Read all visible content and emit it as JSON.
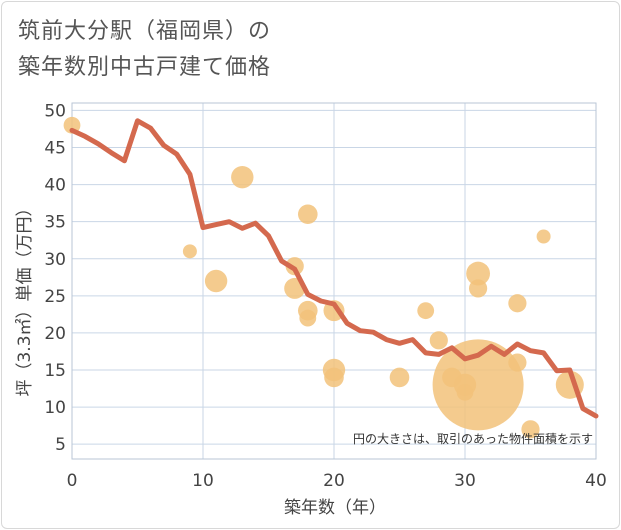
{
  "title_lines": [
    "筑前大分駅（福岡県）の",
    "築年数別中古戸建て価格"
  ],
  "chart_data": {
    "type": "scatter",
    "xlabel": "築年数（年）",
    "ylabel": "坪（3.3㎡）単価（万円）",
    "xlim": [
      0,
      40
    ],
    "ylim": [
      3,
      51
    ],
    "xticks": [
      0,
      10,
      20,
      30,
      40
    ],
    "yticks": [
      5,
      10,
      15,
      20,
      25,
      30,
      35,
      40,
      45,
      50
    ],
    "grid": true,
    "annotation": "円の大きさは、取引のあった物件面積を示す",
    "colors": {
      "bubble": "#f2c27a",
      "line": "#d4694e",
      "grid": "#c9d6e6",
      "plot_border": "#b9c6d6"
    },
    "bubbles": [
      {
        "x": 0,
        "y": 48,
        "s": 1.2
      },
      {
        "x": 9,
        "y": 31,
        "s": 1
      },
      {
        "x": 11,
        "y": 27,
        "s": 1.6
      },
      {
        "x": 13,
        "y": 41,
        "s": 1.6
      },
      {
        "x": 17,
        "y": 29,
        "s": 1.3
      },
      {
        "x": 17,
        "y": 26,
        "s": 1.5
      },
      {
        "x": 18,
        "y": 36,
        "s": 1.4
      },
      {
        "x": 18,
        "y": 23,
        "s": 1.4
      },
      {
        "x": 18,
        "y": 22,
        "s": 1.2
      },
      {
        "x": 20,
        "y": 23,
        "s": 1.5
      },
      {
        "x": 20,
        "y": 15,
        "s": 1.6
      },
      {
        "x": 20,
        "y": 14,
        "s": 1.4
      },
      {
        "x": 25,
        "y": 14,
        "s": 1.4
      },
      {
        "x": 27,
        "y": 23,
        "s": 1.2
      },
      {
        "x": 28,
        "y": 19,
        "s": 1.3
      },
      {
        "x": 29,
        "y": 14,
        "s": 1.4
      },
      {
        "x": 30,
        "y": 13,
        "s": 1.6
      },
      {
        "x": 30,
        "y": 12,
        "s": 1.2
      },
      {
        "x": 31,
        "y": 28,
        "s": 1.7
      },
      {
        "x": 31,
        "y": 26,
        "s": 1.3
      },
      {
        "x": 31,
        "y": 13,
        "s": 6.5
      },
      {
        "x": 34,
        "y": 24,
        "s": 1.3
      },
      {
        "x": 34,
        "y": 16,
        "s": 1.3
      },
      {
        "x": 35,
        "y": 7,
        "s": 1.3
      },
      {
        "x": 36,
        "y": 33,
        "s": 1
      },
      {
        "x": 38,
        "y": 13,
        "s": 2
      }
    ],
    "trend": {
      "x": [
        0,
        1,
        2,
        3,
        4,
        5,
        6,
        7,
        8,
        9,
        10,
        11,
        12,
        13,
        14,
        15,
        16,
        17,
        18,
        19,
        20,
        21,
        22,
        23,
        24,
        25,
        26,
        27,
        28,
        29,
        30,
        31,
        32,
        33,
        34,
        35,
        36,
        37,
        38,
        39,
        40
      ],
      "y": [
        47.3,
        46.5,
        45.5,
        44.3,
        43.2,
        48.6,
        47.6,
        45.3,
        44.1,
        41.4,
        34.2,
        34.6,
        35.0,
        34.1,
        34.8,
        33.1,
        29.7,
        28.6,
        25.2,
        24.3,
        23.9,
        21.3,
        20.3,
        20.1,
        19.1,
        18.6,
        19.1,
        17.3,
        17.1,
        18.0,
        16.5,
        17.0,
        18.2,
        17.1,
        18.5,
        17.6,
        17.3,
        14.9,
        15.0,
        9.8,
        8.8
      ]
    }
  }
}
